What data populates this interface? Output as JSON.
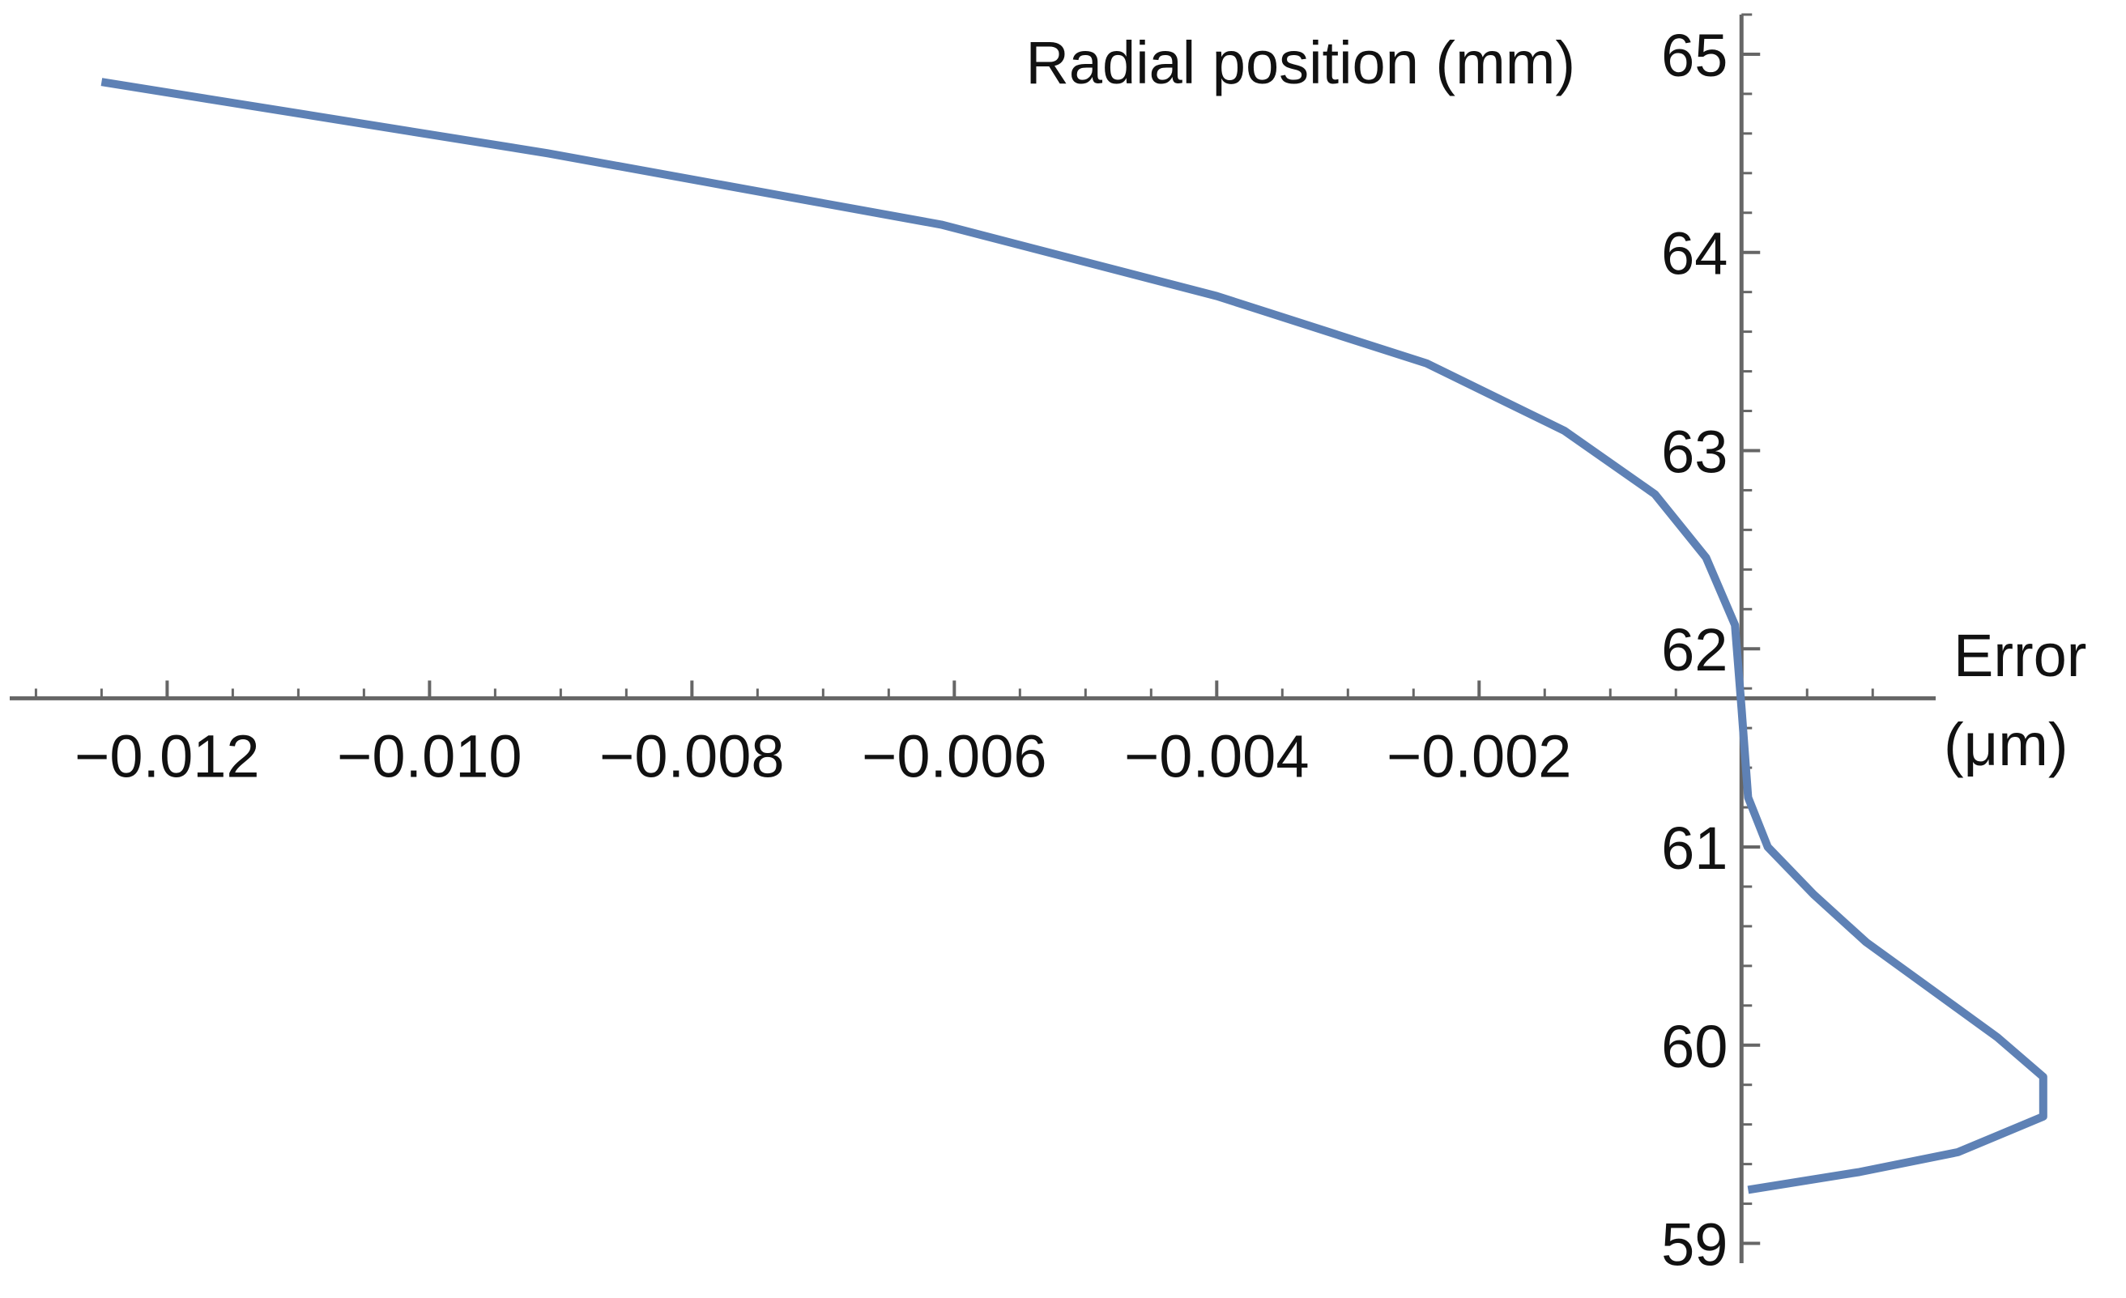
{
  "chart_data": {
    "type": "line",
    "title": "",
    "xlabel_line1": "Error",
    "xlabel_line2": "(μm)",
    "ylabel": "Radial position (mm)",
    "xlim": [
      -0.0132,
      0.00148
    ],
    "ylim": [
      58.9,
      65.2
    ],
    "grid": false,
    "axes_origin": {
      "x": 0,
      "y": 61.75
    },
    "x_ticks": [
      -0.012,
      -0.01,
      -0.008,
      -0.006,
      -0.004,
      -0.002
    ],
    "x_tick_labels": [
      "−0.012",
      "−0.010",
      "−0.008",
      "−0.006",
      "−0.004",
      "−0.002"
    ],
    "x_minor_step": 0.0005,
    "y_ticks": [
      59,
      60,
      61,
      62,
      63,
      64,
      65
    ],
    "y_tick_labels": [
      "59",
      "60",
      "61",
      "62",
      "63",
      "64",
      "65"
    ],
    "y_minor_step": 0.2,
    "series": [
      {
        "color": "#5e81b5",
        "points": [
          [
            -0.0125,
            64.86
          ],
          [
            -0.0091,
            64.5
          ],
          [
            -0.0061,
            64.14
          ],
          [
            -0.004,
            63.78
          ],
          [
            -0.0024,
            63.44
          ],
          [
            -0.00135,
            63.1
          ],
          [
            -0.00066,
            62.78
          ],
          [
            -0.00027,
            62.46
          ],
          [
            -5e-05,
            62.12
          ],
          [
            0.0,
            61.7
          ],
          [
            5e-05,
            61.25
          ],
          [
            0.0002,
            61.0
          ],
          [
            0.00055,
            60.76
          ],
          [
            0.00095,
            60.52
          ],
          [
            0.00145,
            60.28
          ],
          [
            0.00195,
            60.04
          ],
          [
            0.0023,
            59.84
          ],
          [
            0.0023,
            59.64
          ],
          [
            0.00165,
            59.46
          ],
          [
            0.0009,
            59.36
          ],
          [
            5e-05,
            59.27
          ]
        ]
      }
    ]
  }
}
